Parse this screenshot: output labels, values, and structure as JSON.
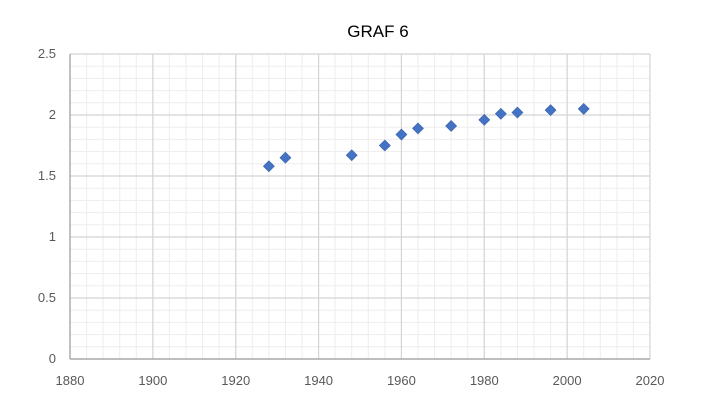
{
  "chart_data": {
    "type": "scatter",
    "title": "GRAF 6",
    "xlabel": "",
    "ylabel": "",
    "xlim": [
      1880,
      2020
    ],
    "ylim": [
      0,
      2.5
    ],
    "x_ticks": [
      1880,
      1900,
      1920,
      1940,
      1960,
      1980,
      2000,
      2020
    ],
    "y_ticks": [
      0,
      0.5,
      1,
      1.5,
      2,
      2.5
    ],
    "grid": true,
    "legend": "none",
    "marker": "diamond",
    "color": "#4472C4",
    "points": [
      {
        "x": 1928,
        "y": 1.58
      },
      {
        "x": 1932,
        "y": 1.65
      },
      {
        "x": 1948,
        "y": 1.67
      },
      {
        "x": 1956,
        "y": 1.75
      },
      {
        "x": 1960,
        "y": 1.84
      },
      {
        "x": 1964,
        "y": 1.89
      },
      {
        "x": 1972,
        "y": 1.91
      },
      {
        "x": 1980,
        "y": 1.96
      },
      {
        "x": 1984,
        "y": 2.01
      },
      {
        "x": 1988,
        "y": 2.02
      },
      {
        "x": 1996,
        "y": 2.04
      },
      {
        "x": 2004,
        "y": 2.05
      }
    ]
  }
}
